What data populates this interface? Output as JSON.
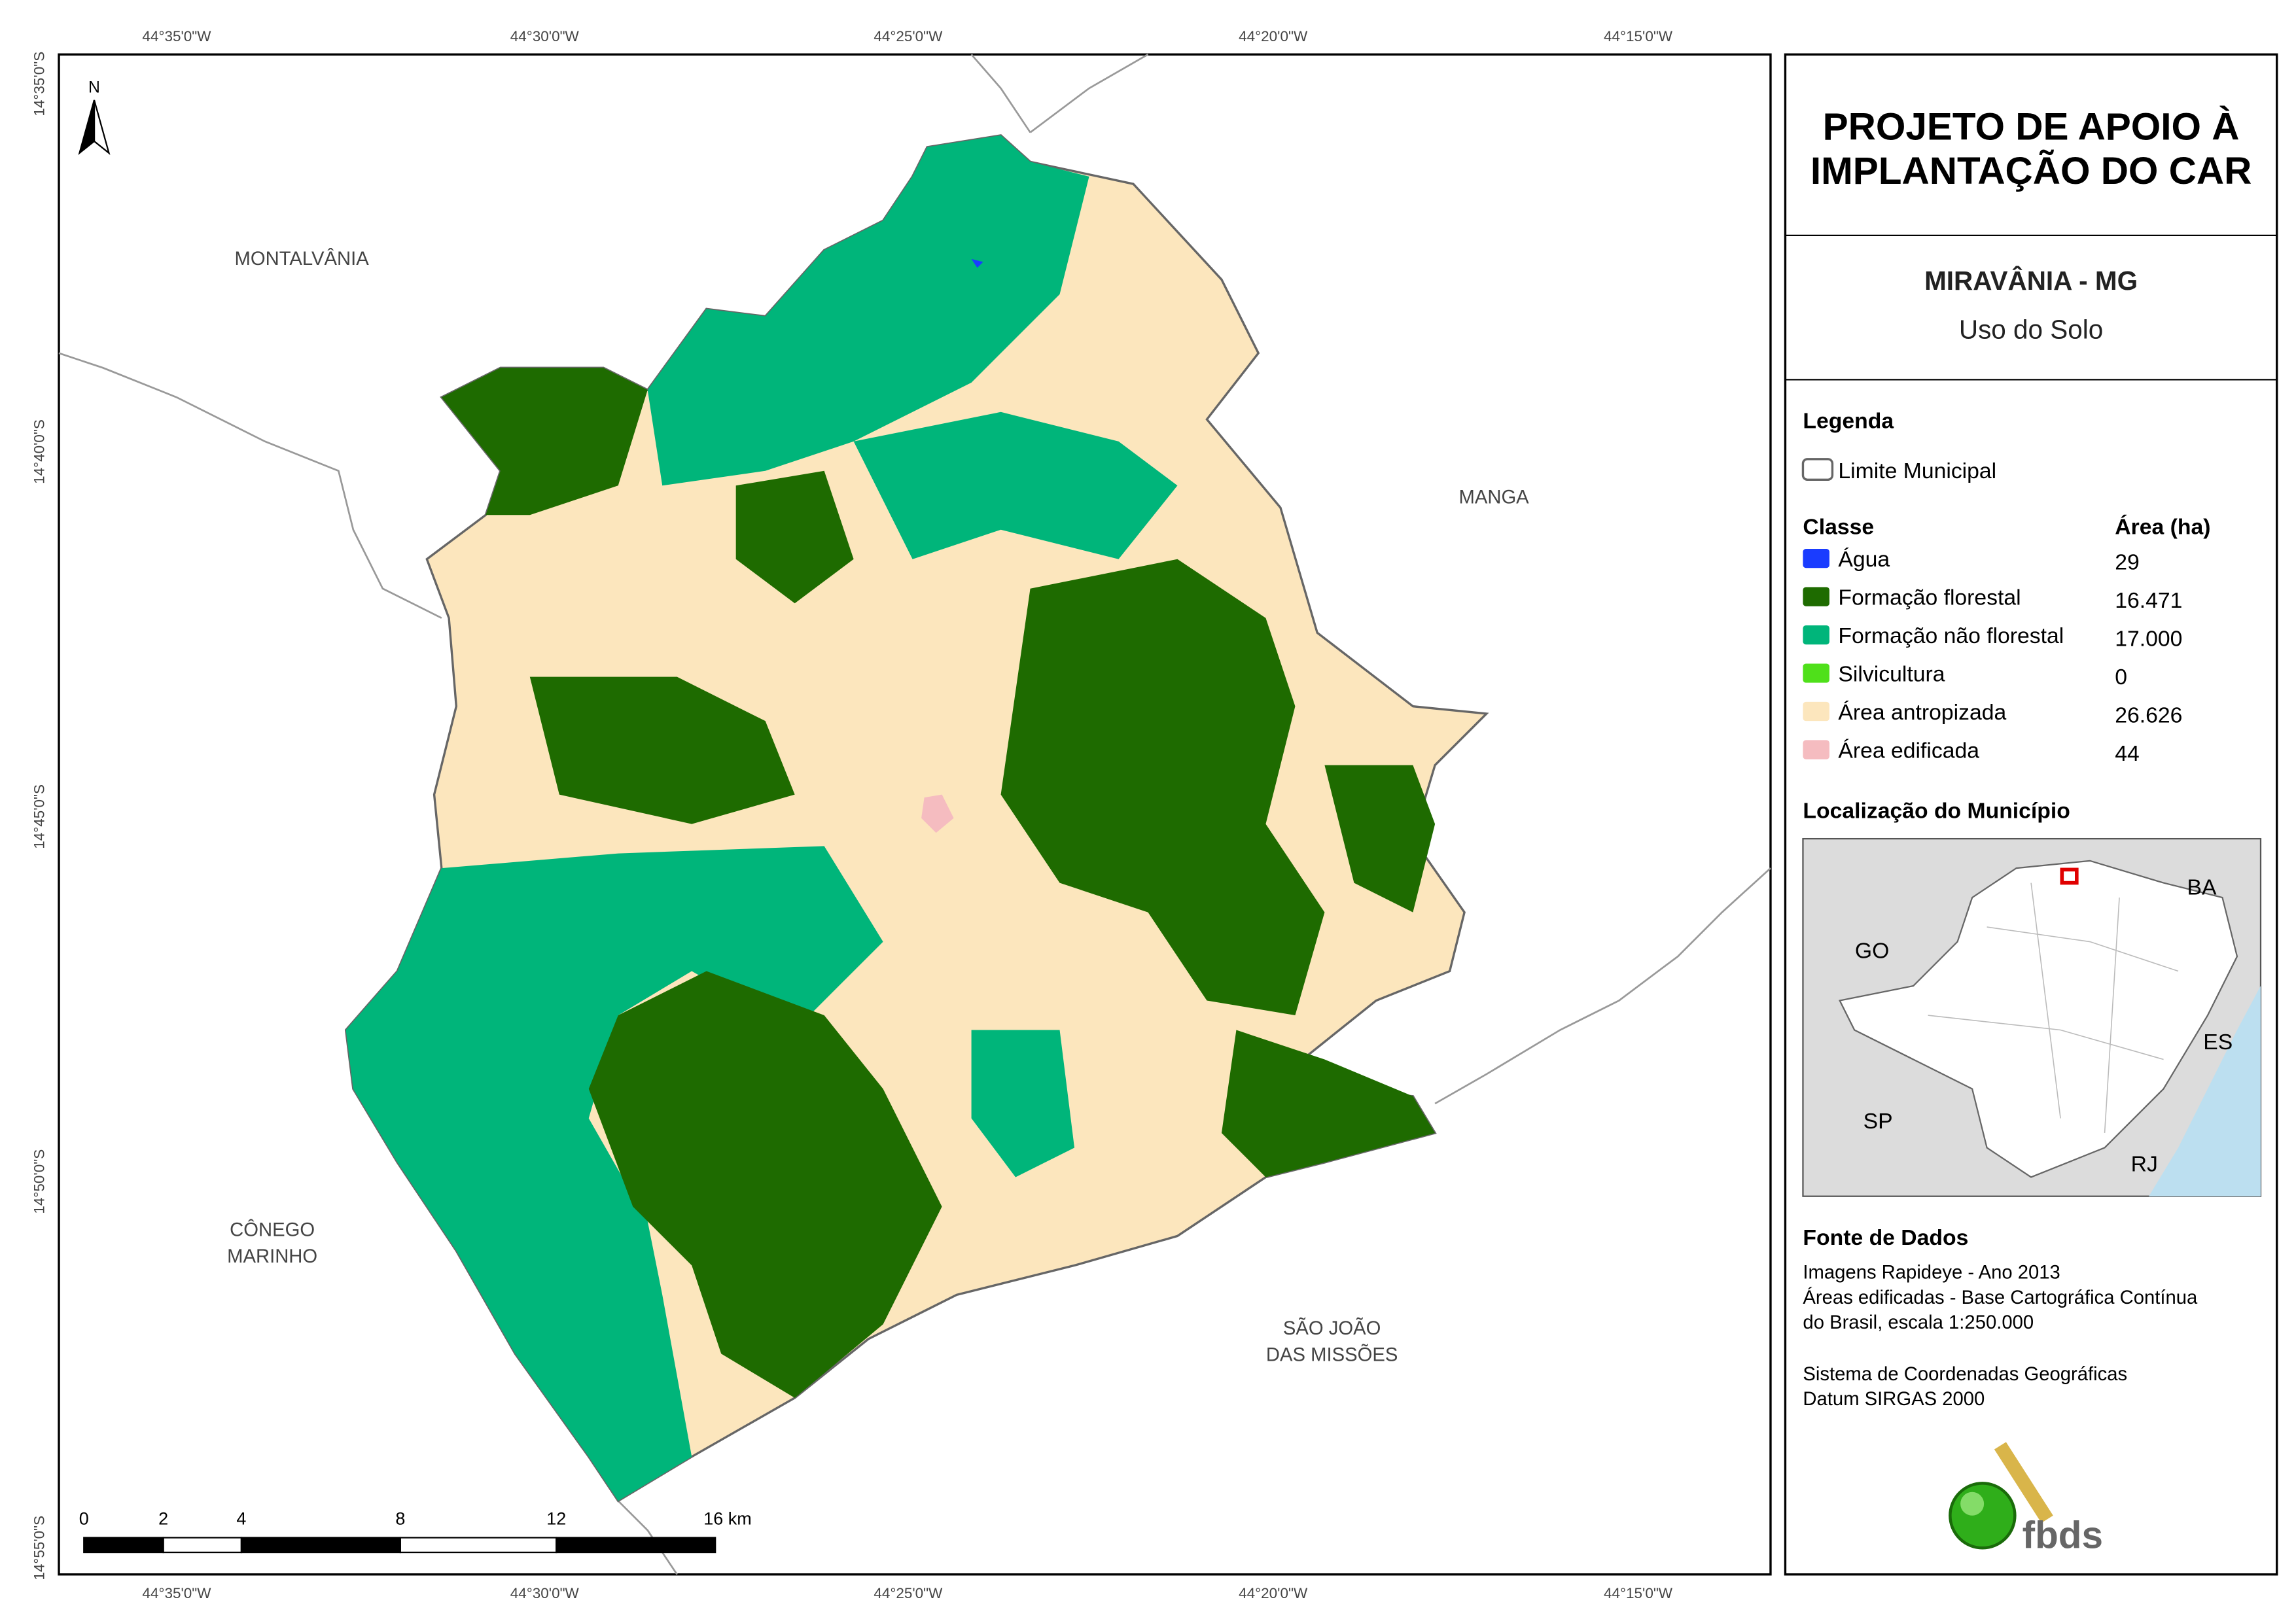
{
  "map": {
    "longitude_labels": [
      "44°35'0\"W",
      "44°30'0\"W",
      "44°25'0\"W",
      "44°20'0\"W",
      "44°15'0\"W"
    ],
    "latitude_labels": [
      "14°35'0\"S",
      "14°40'0\"S",
      "14°45'0\"S",
      "14°50'0\"S",
      "14°55'0\"S"
    ],
    "north": "N",
    "places": [
      [
        "MONTALVÂNIA"
      ],
      [
        "MANGA"
      ],
      [
        "CÔNEGO",
        "MARINHO"
      ],
      [
        "SÃO JOÃO",
        "DAS MISSÕES"
      ]
    ]
  },
  "scale_bar": {
    "labels": [
      "0",
      "2",
      "4",
      "8",
      "12",
      "16 km"
    ]
  },
  "panel": {
    "title": [
      "PROJETO DE APOIO À",
      "IMPLANTAÇÃO DO CAR"
    ],
    "municipality": "MIRAVÂNIA - MG",
    "theme": "Uso do Solo",
    "legend_heading": "Legenda",
    "boundary": "Limite Municipal",
    "class_heading": "Classe",
    "area_heading": "Área (ha)",
    "classes": [
      {
        "name": "Água",
        "color": "#1a3cff",
        "area": "29"
      },
      {
        "name": "Formação florestal",
        "color": "#1e6b00",
        "area": "16.471"
      },
      {
        "name": "Formação não florestal",
        "color": "#00b57a",
        "area": "17.000"
      },
      {
        "name": "Silvicultura",
        "color": "#4fe01a",
        "area": "0"
      },
      {
        "name": "Área antropizada",
        "color": "#fce6bd",
        "area": "26.626"
      },
      {
        "name": "Área edificada",
        "color": "#f5bcc0",
        "area": "44"
      }
    ],
    "location_heading": "Localização do Município",
    "states": [
      "BA",
      "GO",
      "ES",
      "SP",
      "RJ"
    ],
    "sources_heading": "Fonte de Dados",
    "sources": [
      "Imagens Rapideye - Ano 2013",
      "Áreas edificadas - Base Cartográfica Contínua",
      "do Brasil, escala 1:250.000",
      "Sistema de Coordenadas Geográficas",
      "Datum SIRGAS 2000"
    ],
    "logo": "fbds"
  }
}
